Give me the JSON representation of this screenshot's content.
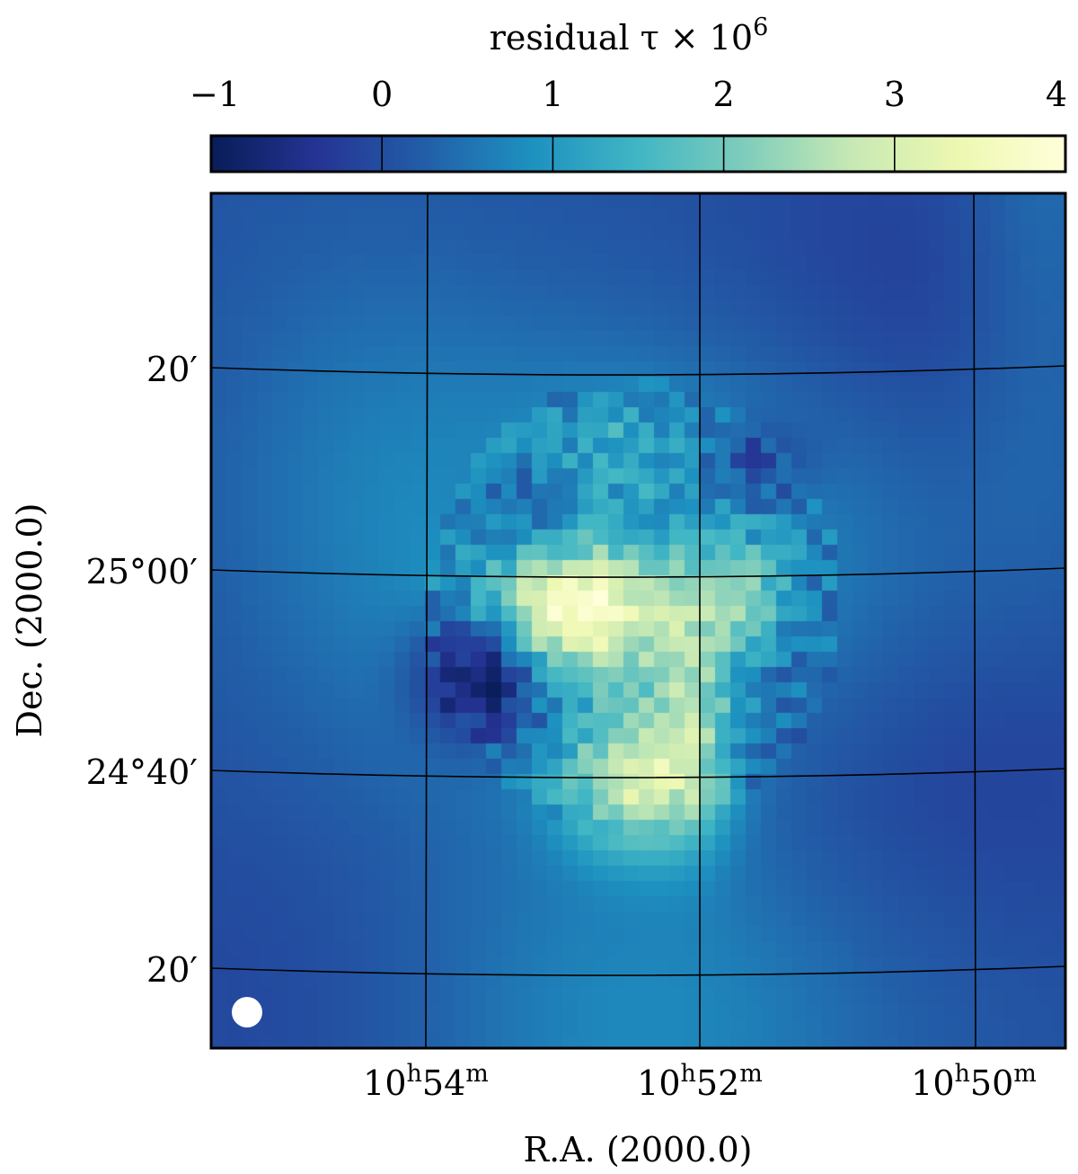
{
  "chart_data": {
    "type": "heatmap",
    "colorbar": {
      "label": "residual τ × 10",
      "label_exponent": "6",
      "min": -1,
      "max": 4,
      "ticks": [
        {
          "value": -1,
          "label": "−1"
        },
        {
          "value": 0,
          "label": "0"
        },
        {
          "value": 1,
          "label": "1"
        },
        {
          "value": 2,
          "label": "2"
        },
        {
          "value": 3,
          "label": "3"
        },
        {
          "value": 4,
          "label": "4"
        }
      ],
      "colormap": [
        "#081d58",
        "#253494",
        "#225ea8",
        "#1d91c0",
        "#41b6c4",
        "#7fcdbb",
        "#c7e9b4",
        "#edf8b1",
        "#ffffd9"
      ]
    },
    "xlabel": "R.A. (2000.0)",
    "ylabel": "Dec. (2000.0)",
    "xticks": [
      {
        "value": "10h54m",
        "main": "10",
        "h": "h",
        "min": "54",
        "m": "m"
      },
      {
        "value": "10h52m",
        "main": "10",
        "h": "h",
        "min": "52",
        "m": "m"
      },
      {
        "value": "10h50m",
        "main": "10",
        "h": "h",
        "min": "50",
        "m": "m"
      }
    ],
    "yticks": [
      {
        "value": "25°20′",
        "label": "20′"
      },
      {
        "value": "25°00′",
        "label": "25°00′"
      },
      {
        "value": "24°40′",
        "label": "24°40′"
      },
      {
        "value": "24°20′",
        "label": "20′"
      }
    ],
    "grid": true,
    "beam_marker": true,
    "features": [
      {
        "ra": "10h53m",
        "dec": "24°56′",
        "value": 3.9
      },
      {
        "ra": "10h52m40s",
        "dec": "24°38′",
        "value": 3.3
      },
      {
        "ra": "10h51m45s",
        "dec": "24°58′",
        "value": 2.6
      },
      {
        "ra": "10h52m10s",
        "dec": "24°48′",
        "value": 2.2
      },
      {
        "ra": "10h53m30s",
        "dec": "24°52′",
        "value": -0.9
      },
      {
        "ra": "10h52m30s",
        "dec": "25°10′",
        "value": 1.2
      }
    ]
  }
}
